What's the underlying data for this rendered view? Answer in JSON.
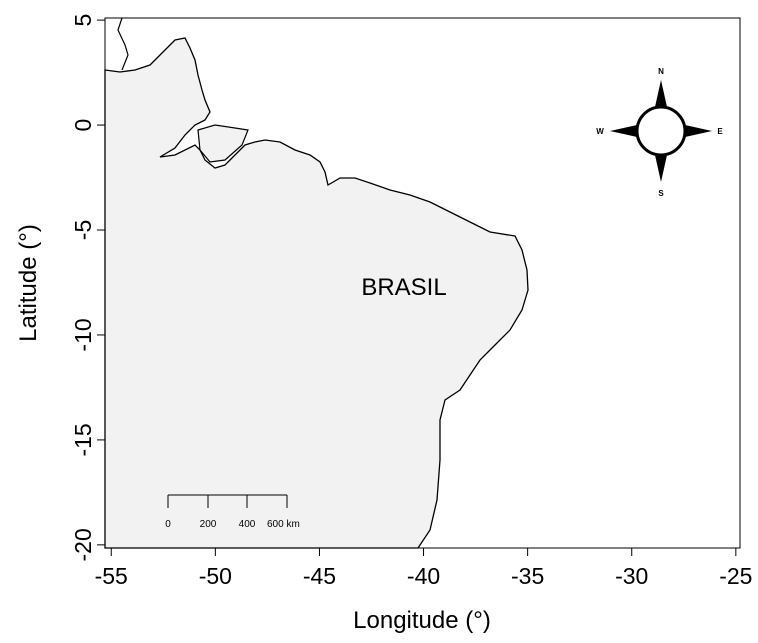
{
  "chart_data": {
    "type": "map",
    "xlabel": "Longitude (°)",
    "ylabel": "Latitude (°)",
    "xlim": [
      -55.3,
      -24.8
    ],
    "ylim": [
      -20.15,
      5.1
    ],
    "xticks": [
      -55,
      -50,
      -45,
      -40,
      -35,
      -30,
      -25
    ],
    "yticks": [
      5,
      0,
      -5,
      -10,
      -15,
      -20
    ],
    "region_label": "BRASIL",
    "compass": {
      "N": "N",
      "S": "S",
      "E": "E",
      "W": "W"
    },
    "scale_bar": [
      "0",
      "200",
      "400",
      "600 km"
    ]
  }
}
